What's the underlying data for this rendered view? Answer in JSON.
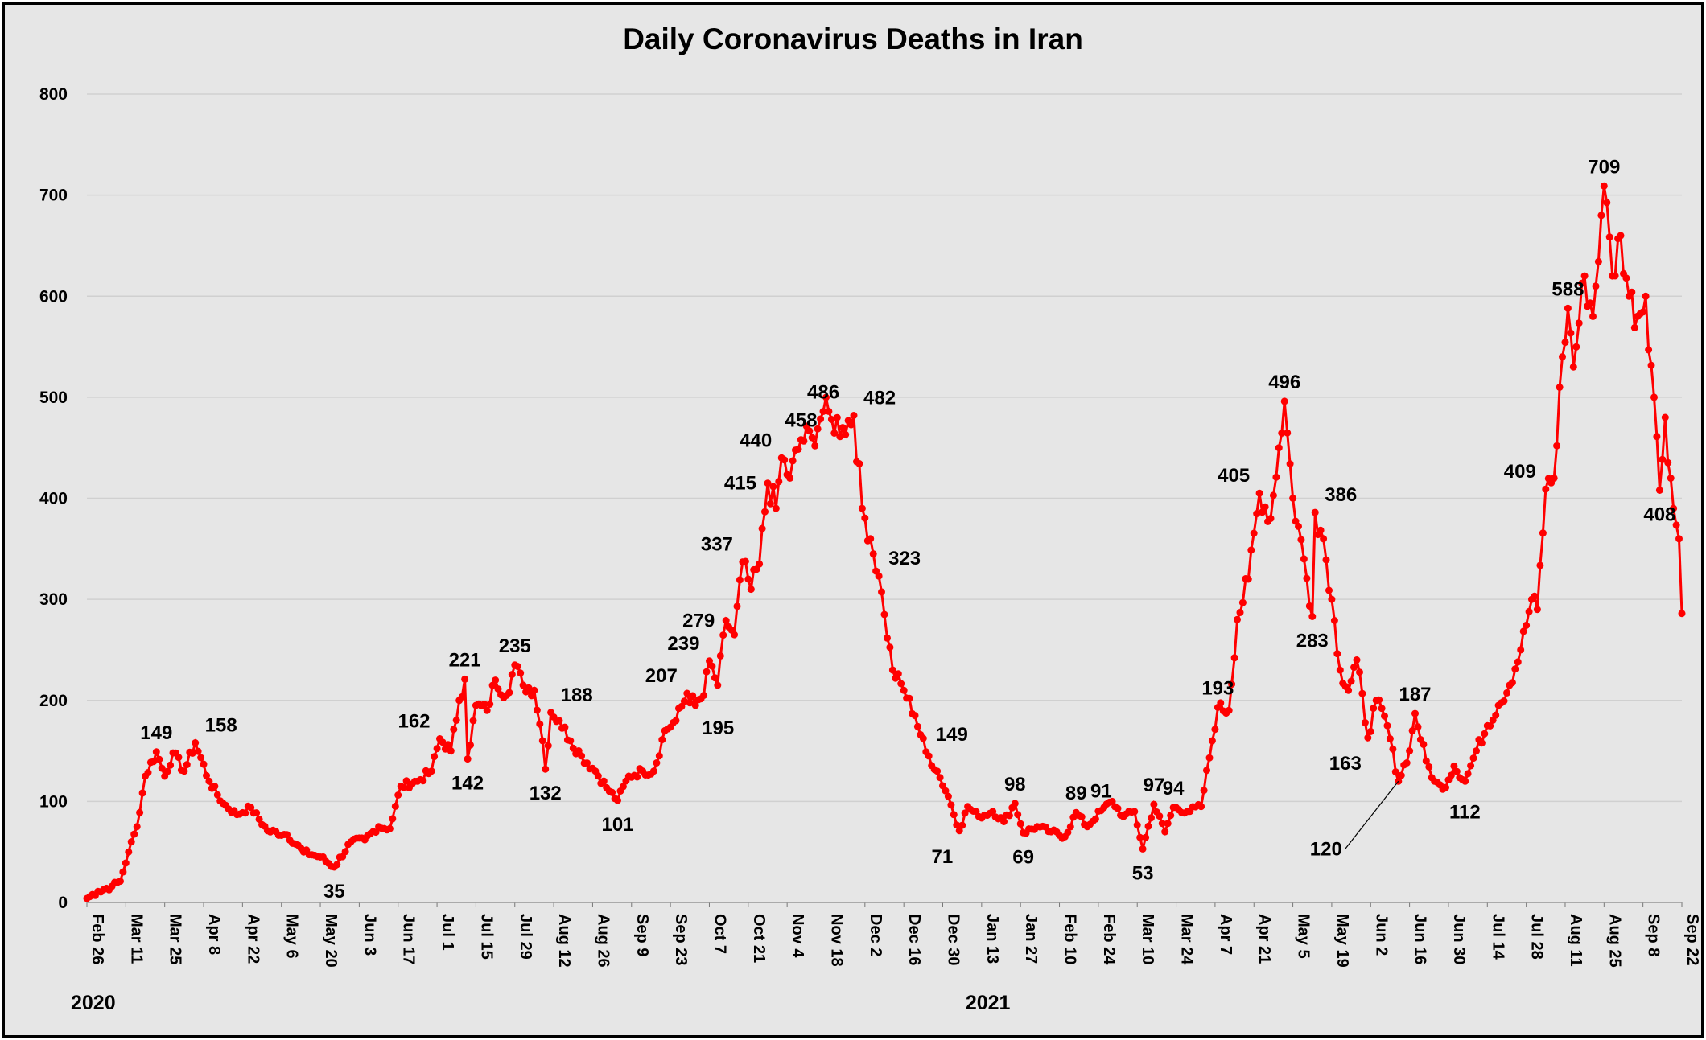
{
  "chart_data": {
    "type": "line",
    "title": "Daily Coronavirus Deaths in Iran",
    "xlabel": "",
    "ylabel": "",
    "ylim": [
      0,
      800
    ],
    "y_ticks": [
      0,
      100,
      200,
      300,
      400,
      500,
      600,
      700,
      800
    ],
    "grid": true,
    "legend": "none",
    "series_color": "#ff0000",
    "x_ticks": [
      "Feb 26",
      "Mar 11",
      "Mar 25",
      "Apr 8",
      "Apr 22",
      "May 6",
      "May 20",
      "Jun 3",
      "Jun 17",
      "Jul 1",
      "Jul 15",
      "Jul 29",
      "Aug 12",
      "Aug 26",
      "Sep 9",
      "Sep 23",
      "Oct 7",
      "Oct 21",
      "Nov 4",
      "Nov 18",
      "Dec 2",
      "Dec 16",
      "Dec 30",
      "Jan 13",
      "Jan 27",
      "Feb 10",
      "Feb 24",
      "Mar 10",
      "Mar 24",
      "Apr 7",
      "Apr 21",
      "May 5",
      "May 19",
      "Jun 2",
      "Jun 16",
      "Jun 30",
      "Jul 14",
      "Jul 28",
      "Aug 11",
      "Aug 25",
      "Sep 8",
      "Sep 22"
    ],
    "year_labels": [
      {
        "text": "2020",
        "tick": 0
      },
      {
        "text": "2021",
        "tick": 23
      }
    ],
    "x_start": "2020-02-26",
    "x_end": "2021-09-22",
    "anchors": [
      [
        "2020-02-26",
        4
      ],
      [
        "2020-03-01",
        11
      ],
      [
        "2020-03-06",
        16
      ],
      [
        "2020-03-09",
        21
      ],
      [
        "2020-03-12",
        50
      ],
      [
        "2020-03-15",
        75
      ],
      [
        "2020-03-18",
        125
      ],
      [
        "2020-03-22",
        149
      ],
      [
        "2020-03-25",
        125
      ],
      [
        "2020-03-28",
        148
      ],
      [
        "2020-04-01",
        130
      ],
      [
        "2020-04-05",
        158
      ],
      [
        "2020-04-10",
        120
      ],
      [
        "2020-04-15",
        98
      ],
      [
        "2020-04-20",
        87
      ],
      [
        "2020-04-25",
        94
      ],
      [
        "2020-05-01",
        71
      ],
      [
        "2020-05-08",
        67
      ],
      [
        "2020-05-14",
        50
      ],
      [
        "2020-05-20",
        45
      ],
      [
        "2020-05-25",
        35
      ],
      [
        "2020-05-31",
        60
      ],
      [
        "2020-06-05",
        62
      ],
      [
        "2020-06-10",
        75
      ],
      [
        "2020-06-14",
        73
      ],
      [
        "2020-06-18",
        115
      ],
      [
        "2020-06-24",
        120
      ],
      [
        "2020-06-29",
        130
      ],
      [
        "2020-07-02",
        162
      ],
      [
        "2020-07-06",
        150
      ],
      [
        "2020-07-09",
        200
      ],
      [
        "2020-07-11",
        221
      ],
      [
        "2020-07-12",
        142
      ],
      [
        "2020-07-15",
        195
      ],
      [
        "2020-07-19",
        190
      ],
      [
        "2020-07-22",
        220
      ],
      [
        "2020-07-26",
        205
      ],
      [
        "2020-07-29",
        235
      ],
      [
        "2020-08-01",
        215
      ],
      [
        "2020-08-05",
        210
      ],
      [
        "2020-08-08",
        160
      ],
      [
        "2020-08-09",
        132
      ],
      [
        "2020-08-11",
        188
      ],
      [
        "2020-08-14",
        180
      ],
      [
        "2020-08-18",
        160
      ],
      [
        "2020-08-22",
        145
      ],
      [
        "2020-08-27",
        130
      ],
      [
        "2020-09-01",
        110
      ],
      [
        "2020-09-04",
        101
      ],
      [
        "2020-09-08",
        125
      ],
      [
        "2020-09-13",
        130
      ],
      [
        "2020-09-17",
        130
      ],
      [
        "2020-09-21",
        170
      ],
      [
        "2020-09-25",
        180
      ],
      [
        "2020-09-29",
        207
      ],
      [
        "2020-10-02",
        195
      ],
      [
        "2020-10-05",
        205
      ],
      [
        "2020-10-07",
        239
      ],
      [
        "2020-10-10",
        215
      ],
      [
        "2020-10-13",
        279
      ],
      [
        "2020-10-16",
        265
      ],
      [
        "2020-10-19",
        337
      ],
      [
        "2020-10-22",
        310
      ],
      [
        "2020-10-25",
        335
      ],
      [
        "2020-10-28",
        415
      ],
      [
        "2020-10-31",
        390
      ],
      [
        "2020-11-02",
        440
      ],
      [
        "2020-11-05",
        420
      ],
      [
        "2020-11-09",
        458
      ],
      [
        "2020-11-13",
        460
      ],
      [
        "2020-11-17",
        486
      ],
      [
        "2020-11-20",
        478
      ],
      [
        "2020-11-24",
        470
      ],
      [
        "2020-11-28",
        482
      ],
      [
        "2020-12-01",
        390
      ],
      [
        "2020-12-04",
        360
      ],
      [
        "2020-12-07",
        323
      ],
      [
        "2020-12-09",
        285
      ],
      [
        "2020-12-12",
        230
      ],
      [
        "2020-12-16",
        210
      ],
      [
        "2020-12-20",
        185
      ],
      [
        "2020-12-24",
        149
      ],
      [
        "2020-12-28",
        130
      ],
      [
        "2021-01-01",
        105
      ],
      [
        "2021-01-05",
        71
      ],
      [
        "2021-01-08",
        95
      ],
      [
        "2021-01-12",
        85
      ],
      [
        "2021-01-17",
        90
      ],
      [
        "2021-01-21",
        80
      ],
      [
        "2021-01-25",
        98
      ],
      [
        "2021-01-28",
        69
      ],
      [
        "2021-02-02",
        75
      ],
      [
        "2021-02-07",
        70
      ],
      [
        "2021-02-12",
        65
      ],
      [
        "2021-02-16",
        89
      ],
      [
        "2021-02-20",
        75
      ],
      [
        "2021-02-25",
        91
      ],
      [
        "2021-03-01",
        100
      ],
      [
        "2021-03-05",
        85
      ],
      [
        "2021-03-09",
        90
      ],
      [
        "2021-03-12",
        53
      ],
      [
        "2021-03-16",
        97
      ],
      [
        "2021-03-20",
        70
      ],
      [
        "2021-03-23",
        94
      ],
      [
        "2021-03-28",
        90
      ],
      [
        "2021-04-02",
        95
      ],
      [
        "2021-04-06",
        160
      ],
      [
        "2021-04-08",
        193
      ],
      [
        "2021-04-12",
        190
      ],
      [
        "2021-04-15",
        280
      ],
      [
        "2021-04-19",
        320
      ],
      [
        "2021-04-23",
        405
      ],
      [
        "2021-04-27",
        380
      ],
      [
        "2021-04-30",
        450
      ],
      [
        "2021-05-02",
        496
      ],
      [
        "2021-05-05",
        400
      ],
      [
        "2021-05-09",
        340
      ],
      [
        "2021-05-12",
        283
      ],
      [
        "2021-05-13",
        386
      ],
      [
        "2021-05-16",
        360
      ],
      [
        "2021-05-19",
        300
      ],
      [
        "2021-05-22",
        230
      ],
      [
        "2021-05-25",
        210
      ],
      [
        "2021-05-28",
        240
      ],
      [
        "2021-06-01",
        163
      ],
      [
        "2021-06-04",
        200
      ],
      [
        "2021-06-08",
        175
      ],
      [
        "2021-06-12",
        120
      ],
      [
        "2021-06-16",
        150
      ],
      [
        "2021-06-18",
        187
      ],
      [
        "2021-06-22",
        140
      ],
      [
        "2021-06-25",
        120
      ],
      [
        "2021-06-28",
        112
      ],
      [
        "2021-07-02",
        135
      ],
      [
        "2021-07-06",
        120
      ],
      [
        "2021-07-10",
        150
      ],
      [
        "2021-07-14",
        175
      ],
      [
        "2021-07-18",
        195
      ],
      [
        "2021-07-22",
        215
      ],
      [
        "2021-07-26",
        250
      ],
      [
        "2021-07-30",
        300
      ],
      [
        "2021-08-01",
        290
      ],
      [
        "2021-08-04",
        409
      ],
      [
        "2021-08-07",
        420
      ],
      [
        "2021-08-10",
        540
      ],
      [
        "2021-08-12",
        588
      ],
      [
        "2021-08-14",
        530
      ],
      [
        "2021-08-18",
        620
      ],
      [
        "2021-08-21",
        580
      ],
      [
        "2021-08-24",
        680
      ],
      [
        "2021-08-25",
        709
      ],
      [
        "2021-08-28",
        620
      ],
      [
        "2021-08-31",
        660
      ],
      [
        "2021-09-03",
        600
      ],
      [
        "2021-09-06",
        580
      ],
      [
        "2021-09-09",
        600
      ],
      [
        "2021-09-12",
        500
      ],
      [
        "2021-09-14",
        408
      ],
      [
        "2021-09-16",
        480
      ],
      [
        "2021-09-19",
        390
      ],
      [
        "2021-09-21",
        360
      ],
      [
        "2021-09-22",
        286
      ]
    ],
    "annotations": [
      {
        "text": "149",
        "date": "2020-03-22",
        "value": 149,
        "pos": "above"
      },
      {
        "text": "158",
        "date": "2020-04-05",
        "value": 158,
        "pos": "above-right"
      },
      {
        "text": "35",
        "date": "2020-05-25",
        "value": 35,
        "pos": "below"
      },
      {
        "text": "162",
        "date": "2020-07-02",
        "value": 162,
        "pos": "above-left"
      },
      {
        "text": "221",
        "date": "2020-07-11",
        "value": 221,
        "pos": "above"
      },
      {
        "text": "142",
        "date": "2020-07-12",
        "value": 142,
        "pos": "below"
      },
      {
        "text": "235",
        "date": "2020-07-29",
        "value": 235,
        "pos": "above"
      },
      {
        "text": "188",
        "date": "2020-08-11",
        "value": 188,
        "pos": "above-right"
      },
      {
        "text": "132",
        "date": "2020-08-09",
        "value": 132,
        "pos": "below"
      },
      {
        "text": "101",
        "date": "2020-09-04",
        "value": 101,
        "pos": "below"
      },
      {
        "text": "207",
        "date": "2020-09-29",
        "value": 207,
        "pos": "above-left"
      },
      {
        "text": "195",
        "date": "2020-10-02",
        "value": 195,
        "pos": "below-right"
      },
      {
        "text": "239",
        "date": "2020-10-07",
        "value": 239,
        "pos": "above-left"
      },
      {
        "text": "279",
        "date": "2020-10-13",
        "value": 279,
        "pos": "left"
      },
      {
        "text": "337",
        "date": "2020-10-19",
        "value": 337,
        "pos": "above-left"
      },
      {
        "text": "415",
        "date": "2020-10-28",
        "value": 415,
        "pos": "left"
      },
      {
        "text": "440",
        "date": "2020-11-02",
        "value": 440,
        "pos": "above-left"
      },
      {
        "text": "458",
        "date": "2020-11-09",
        "value": 458,
        "pos": "above"
      },
      {
        "text": "486",
        "date": "2020-11-17",
        "value": 486,
        "pos": "above"
      },
      {
        "text": "482",
        "date": "2020-11-28",
        "value": 482,
        "pos": "above-right"
      },
      {
        "text": "323",
        "date": "2020-12-07",
        "value": 323,
        "pos": "above-right"
      },
      {
        "text": "149",
        "date": "2020-12-24",
        "value": 149,
        "pos": "above-right"
      },
      {
        "text": "71",
        "date": "2021-01-05",
        "value": 71,
        "pos": "below-left"
      },
      {
        "text": "98",
        "date": "2021-01-25",
        "value": 98,
        "pos": "above"
      },
      {
        "text": "69",
        "date": "2021-01-28",
        "value": 69,
        "pos": "below"
      },
      {
        "text": "89",
        "date": "2021-02-16",
        "value": 89,
        "pos": "above"
      },
      {
        "text": "91",
        "date": "2021-02-25",
        "value": 91,
        "pos": "above"
      },
      {
        "text": "53",
        "date": "2021-03-12",
        "value": 53,
        "pos": "below"
      },
      {
        "text": "97",
        "date": "2021-03-16",
        "value": 97,
        "pos": "above"
      },
      {
        "text": "94",
        "date": "2021-03-23",
        "value": 94,
        "pos": "above"
      },
      {
        "text": "193",
        "date": "2021-04-08",
        "value": 193,
        "pos": "above"
      },
      {
        "text": "405",
        "date": "2021-04-23",
        "value": 405,
        "pos": "above-left"
      },
      {
        "text": "496",
        "date": "2021-05-02",
        "value": 496,
        "pos": "above"
      },
      {
        "text": "386",
        "date": "2021-05-13",
        "value": 386,
        "pos": "above-right"
      },
      {
        "text": "283",
        "date": "2021-05-12",
        "value": 283,
        "pos": "below"
      },
      {
        "text": "163",
        "date": "2021-06-01",
        "value": 163,
        "pos": "below-left"
      },
      {
        "text": "187",
        "date": "2021-06-18",
        "value": 187,
        "pos": "above"
      },
      {
        "text": "120",
        "date": "2021-06-12",
        "value": 120,
        "pos": "below-left-far"
      },
      {
        "text": "112",
        "date": "2021-06-28",
        "value": 112,
        "pos": "below-right"
      },
      {
        "text": "409",
        "date": "2021-08-04",
        "value": 409,
        "pos": "above-left"
      },
      {
        "text": "588",
        "date": "2021-08-12",
        "value": 588,
        "pos": "above"
      },
      {
        "text": "709",
        "date": "2021-08-25",
        "value": 709,
        "pos": "above"
      },
      {
        "text": "408",
        "date": "2021-09-14",
        "value": 408,
        "pos": "below"
      }
    ]
  }
}
